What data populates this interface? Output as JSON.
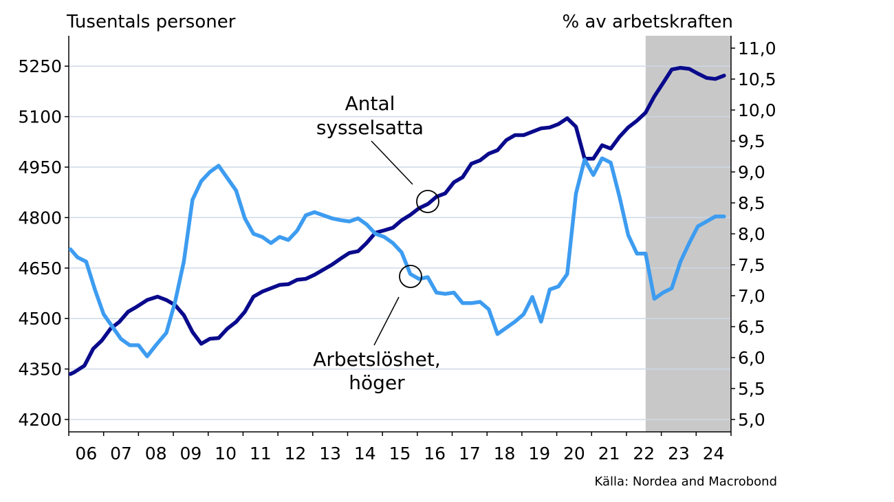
{
  "chart_data": {
    "type": "line",
    "left_axis_title": "Tusentals personer",
    "right_axis_title": "% av arbetskraften",
    "source": "Källa: Nordea and Macrobond",
    "left_ylim": [
      4200,
      5300
    ],
    "left_ticks": [
      4200,
      4350,
      4500,
      4650,
      4800,
      4950,
      5100,
      5250
    ],
    "right_ylim": [
      5.0,
      11.0
    ],
    "right_ticks": [
      "5,0",
      "5,5",
      "6,0",
      "6,5",
      "7,0",
      "7,5",
      "8,0",
      "8,5",
      "9,0",
      "9,5",
      "10,0",
      "10,5",
      "11,0"
    ],
    "right_tick_values": [
      5.0,
      5.5,
      6.0,
      6.5,
      7.0,
      7.5,
      8.0,
      8.5,
      9.0,
      9.5,
      10.0,
      10.5,
      11.0
    ],
    "x_ticks": [
      "06",
      "07",
      "08",
      "09",
      "10",
      "11",
      "12",
      "13",
      "14",
      "15",
      "16",
      "17",
      "18",
      "19",
      "20",
      "21",
      "22",
      "23",
      "24"
    ],
    "grid": true,
    "forecast_shaded_from": 2022.5,
    "colors": {
      "employment": "#0a0a8c",
      "unemployment": "#3d9cf0",
      "shade": "#c8c8c8",
      "grid": "#cdd9e6"
    },
    "series": [
      {
        "name": "Antal sysselsatta",
        "axis": "left",
        "x": [
          2006.0,
          2006.1,
          2006.4,
          2006.65,
          2006.9,
          2007.15,
          2007.4,
          2007.65,
          2007.9,
          2008.2,
          2008.5,
          2008.75,
          2009.0,
          2009.25,
          2009.5,
          2009.75,
          2010.0,
          2010.25,
          2010.5,
          2010.75,
          2011.0,
          2011.25,
          2011.5,
          2011.75,
          2012.0,
          2012.25,
          2012.5,
          2012.75,
          2013.0,
          2013.25,
          2013.5,
          2013.75,
          2014.0,
          2014.25,
          2014.5,
          2014.75,
          2015.0,
          2015.25,
          2015.5,
          2015.75,
          2016.0,
          2016.25,
          2016.5,
          2016.75,
          2017.0,
          2017.25,
          2017.5,
          2017.75,
          2018.0,
          2018.25,
          2018.5,
          2018.75,
          2019.0,
          2019.25,
          2019.5,
          2019.75,
          2020.0,
          2020.25,
          2020.5,
          2020.75,
          2021.0,
          2021.25,
          2021.5,
          2021.75,
          2022.0,
          2022.25,
          2022.5,
          2022.75,
          2023.0,
          2023.25,
          2023.5,
          2023.75,
          2024.0,
          2024.25,
          2024.5,
          2024.75
        ],
        "values": [
          4335,
          4340,
          4360,
          4410,
          4435,
          4470,
          4490,
          4520,
          4535,
          4555,
          4565,
          4555,
          4540,
          4510,
          4460,
          4425,
          4440,
          4442,
          4470,
          4490,
          4520,
          4565,
          4580,
          4590,
          4600,
          4602,
          4615,
          4618,
          4630,
          4645,
          4660,
          4678,
          4695,
          4700,
          4725,
          4755,
          4762,
          4770,
          4792,
          4808,
          4828,
          4840,
          4862,
          4872,
          4905,
          4920,
          4960,
          4970,
          4990,
          5000,
          5030,
          5045,
          5045,
          5055,
          5065,
          5068,
          5078,
          5095,
          5070,
          4975,
          4975,
          5015,
          5005,
          5040,
          5068,
          5088,
          5112,
          5160,
          5200,
          5240,
          5245,
          5242,
          5228,
          5215,
          5212,
          5222
        ]
      },
      {
        "name": "Arbetslöshet, höger",
        "axis": "right",
        "x": [
          2006.0,
          2006.2,
          2006.45,
          2006.7,
          2006.95,
          2007.2,
          2007.45,
          2007.7,
          2007.95,
          2008.2,
          2008.45,
          2008.75,
          2009.0,
          2009.25,
          2009.5,
          2009.75,
          2010.0,
          2010.25,
          2010.5,
          2010.75,
          2011.0,
          2011.25,
          2011.5,
          2011.75,
          2012.0,
          2012.25,
          2012.5,
          2012.75,
          2013.0,
          2013.25,
          2013.5,
          2013.75,
          2014.0,
          2014.25,
          2014.5,
          2014.75,
          2015.0,
          2015.25,
          2015.5,
          2015.75,
          2016.0,
          2016.25,
          2016.5,
          2016.75,
          2017.0,
          2017.25,
          2017.5,
          2017.75,
          2018.0,
          2018.25,
          2018.5,
          2018.75,
          2019.0,
          2019.25,
          2019.5,
          2019.75,
          2020.0,
          2020.25,
          2020.5,
          2020.75,
          2021.0,
          2021.25,
          2021.5,
          2021.75,
          2022.0,
          2022.25,
          2022.5,
          2022.75,
          2023.0,
          2023.25,
          2023.5,
          2023.75,
          2024.0,
          2024.25,
          2024.5,
          2024.75
        ],
        "values": [
          7.75,
          7.62,
          7.55,
          7.1,
          6.7,
          6.5,
          6.3,
          6.2,
          6.2,
          6.02,
          6.2,
          6.4,
          6.9,
          7.55,
          8.55,
          8.85,
          9.0,
          9.1,
          8.9,
          8.7,
          8.25,
          8.0,
          7.95,
          7.85,
          7.95,
          7.9,
          8.05,
          8.3,
          8.35,
          8.3,
          8.25,
          8.22,
          8.2,
          8.25,
          8.15,
          8.0,
          7.95,
          7.85,
          7.7,
          7.35,
          7.27,
          7.3,
          7.05,
          7.03,
          7.05,
          6.88,
          6.88,
          6.9,
          6.78,
          6.38,
          6.48,
          6.58,
          6.7,
          6.98,
          6.58,
          7.1,
          7.15,
          7.35,
          8.65,
          9.2,
          8.95,
          9.22,
          9.15,
          8.6,
          7.98,
          7.68,
          7.68,
          6.95,
          7.05,
          7.12,
          7.55,
          7.85,
          8.12,
          8.2,
          8.28,
          8.28
        ]
      }
    ],
    "annotations": [
      {
        "text_lines": [
          "Antal",
          "sysselsatta"
        ]
      },
      {
        "text_lines": [
          "Arbetslöshet,",
          "höger"
        ]
      }
    ]
  }
}
